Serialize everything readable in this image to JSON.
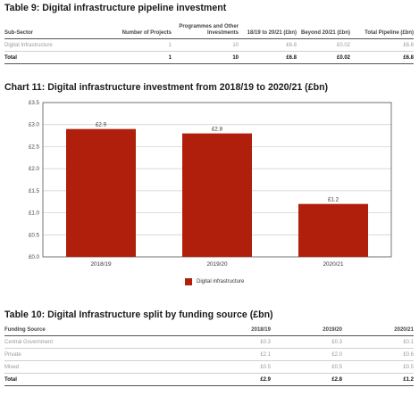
{
  "table9": {
    "title": "Table 9: Digital infrastructure pipeline investment",
    "headers": [
      "Sub-Sector",
      "Number of Projects",
      "Programmes and Other Investments",
      "18/19 to 20/21 (£bn)",
      "Beyond 20/21 (£bn)",
      "Total Pipeline (£bn)"
    ],
    "rows": [
      [
        "Digital Infrastructure",
        "1",
        "10",
        "£6.8",
        "£0.02",
        "£6.8"
      ]
    ],
    "total": [
      "Total",
      "1",
      "10",
      "£6.8",
      "£0.02",
      "£6.8"
    ]
  },
  "chart_title": "Chart 11: Digital infrastructure investment from 2018/19 to 2020/21 (£bn)",
  "chart_data": {
    "type": "bar",
    "categories": [
      "2018/19",
      "2019/20",
      "2020/21"
    ],
    "series": [
      {
        "name": "Digital infrastructure",
        "values": [
          2.9,
          2.8,
          1.2
        ]
      }
    ],
    "data_labels": [
      "£2.9",
      "£2.8",
      "£1.2"
    ],
    "ylim": [
      0,
      3.5
    ],
    "yticks": [
      0,
      0.5,
      1.0,
      1.5,
      2.0,
      2.5,
      3.0,
      3.5
    ],
    "ytick_labels": [
      "£0.0",
      "£0.5",
      "£1.0",
      "£1.5",
      "£2.0",
      "£2.5",
      "£3.0",
      "£3.5"
    ],
    "grid": true,
    "legend_position": "bottom-center",
    "bar_color": "#b01e0c"
  },
  "table10": {
    "title": "Table 10: Digital Infrastructure split by funding source (£bn)",
    "headers": [
      "Funding Source",
      "2018/19",
      "2019/20",
      "2020/21"
    ],
    "rows": [
      [
        "Central Government",
        "£0.3",
        "£0.3",
        "£0.1"
      ],
      [
        "Private",
        "£2.1",
        "£2.0",
        "£0.6"
      ],
      [
        "Mixed",
        "£0.5",
        "£0.5",
        "£0.5"
      ]
    ],
    "total": [
      "Total",
      "£2.9",
      "£2.8",
      "£1.2"
    ]
  }
}
